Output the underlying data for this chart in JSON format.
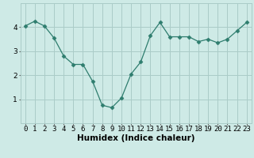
{
  "x": [
    0,
    1,
    2,
    3,
    4,
    5,
    6,
    7,
    8,
    9,
    10,
    11,
    12,
    13,
    14,
    15,
    16,
    17,
    18,
    19,
    20,
    21,
    22,
    23
  ],
  "y": [
    4.05,
    4.25,
    4.05,
    3.55,
    2.8,
    2.45,
    2.45,
    1.75,
    0.75,
    0.65,
    1.05,
    2.05,
    2.55,
    3.65,
    4.2,
    3.6,
    3.6,
    3.6,
    3.4,
    3.5,
    3.35,
    3.5,
    3.85,
    4.2
  ],
  "line_color": "#2e7d6e",
  "marker": "D",
  "marker_size": 2.5,
  "bg_color": "#ceeae6",
  "grid_color": "#aaccc8",
  "xlabel": "Humidex (Indice chaleur)",
  "xlim": [
    -0.5,
    23.5
  ],
  "ylim": [
    0,
    5
  ],
  "yticks": [
    1,
    2,
    3,
    4
  ],
  "xticks": [
    0,
    1,
    2,
    3,
    4,
    5,
    6,
    7,
    8,
    9,
    10,
    11,
    12,
    13,
    14,
    15,
    16,
    17,
    18,
    19,
    20,
    21,
    22,
    23
  ],
  "xlabel_fontsize": 7.5,
  "tick_fontsize": 6.5,
  "lw": 0.9
}
